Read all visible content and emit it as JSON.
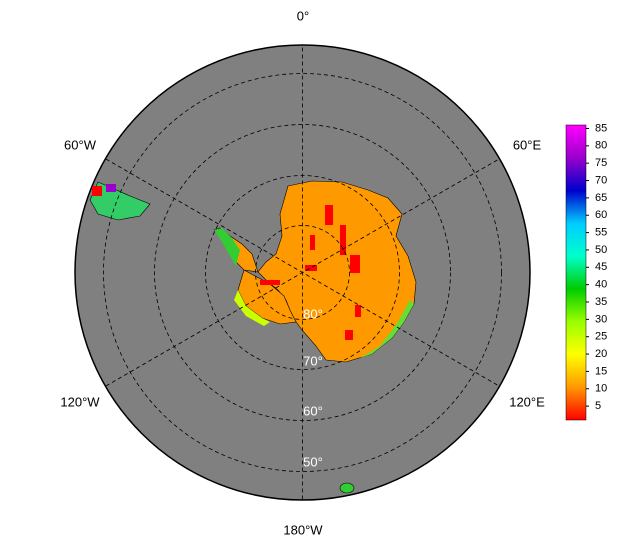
{
  "map": {
    "meridian_labels": [
      "0°",
      "60°E",
      "120°E",
      "180°W",
      "120°W",
      "60°W"
    ],
    "parallel_labels": [
      "80°",
      "70°",
      "60°",
      "50°"
    ],
    "colorbar": {
      "range": [
        1,
        86
      ],
      "ticks": [
        5,
        10,
        15,
        20,
        25,
        30,
        35,
        40,
        45,
        50,
        55,
        60,
        65,
        70,
        75,
        80,
        85
      ],
      "colors": [
        "#ff0000",
        "#ff9900",
        "#ffff00",
        "#99ff00",
        "#00cc00",
        "#00ffcc",
        "#00ccff",
        "#0000cc",
        "#9900cc",
        "#ff00ff"
      ]
    }
  }
}
